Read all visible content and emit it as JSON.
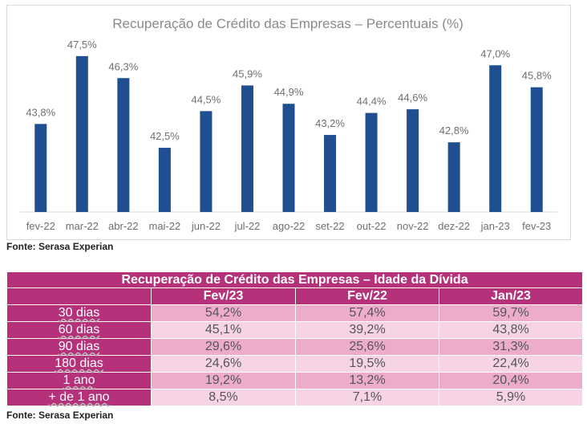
{
  "chart_data": {
    "type": "bar",
    "title": "Recuperação de Crédito das Empresas – Percentuais (%)",
    "categories": [
      "fev-22",
      "mar-22",
      "abr-22",
      "mai-22",
      "jun-22",
      "jul-22",
      "ago-22",
      "set-22",
      "out-22",
      "nov-22",
      "dez-22",
      "jan-23",
      "fev-23"
    ],
    "values": [
      43.8,
      47.5,
      46.3,
      42.5,
      44.5,
      45.9,
      44.9,
      43.2,
      44.4,
      44.6,
      42.8,
      47.0,
      45.8
    ],
    "value_labels": [
      "43,8%",
      "47,5%",
      "46,3%",
      "42,5%",
      "44,5%",
      "45,9%",
      "44,9%",
      "43,2%",
      "44,4%",
      "44,6%",
      "42,8%",
      "47,0%",
      "45,8%"
    ],
    "ylim": [
      39,
      48.5
    ],
    "bar_color": "#1f4e91",
    "grid": false,
    "legend": "none"
  },
  "chart_source": "Fonte: Serasa Experian",
  "table": {
    "title": "Recuperação de Crédito das Empresas – Idade da Dívida",
    "columns": [
      "",
      "Fev/23",
      "Fev/22",
      "Jan/23"
    ],
    "rows": [
      {
        "label": "30 dias",
        "values": [
          "54,2%",
          "57,4%",
          "59,7%"
        ]
      },
      {
        "label": "60 dias",
        "values": [
          "45,1%",
          "39,2%",
          "43,8%"
        ]
      },
      {
        "label": "90 dias",
        "values": [
          "29,6%",
          "25,6%",
          "31,3%"
        ]
      },
      {
        "label": "180 dias",
        "values": [
          "24,6%",
          "19,5%",
          "22,4%"
        ]
      },
      {
        "label": "1 ano",
        "values": [
          "19,2%",
          "13,2%",
          "20,4%"
        ]
      },
      {
        "label": "+ de 1 ano",
        "values": [
          "8,5%",
          "7,1%",
          "5,9%"
        ]
      }
    ],
    "header_color": "#b5317a",
    "row_colors": [
      "#eeaccd",
      "#f6d4e6"
    ]
  },
  "table_source": "Fonte: Serasa Experian"
}
